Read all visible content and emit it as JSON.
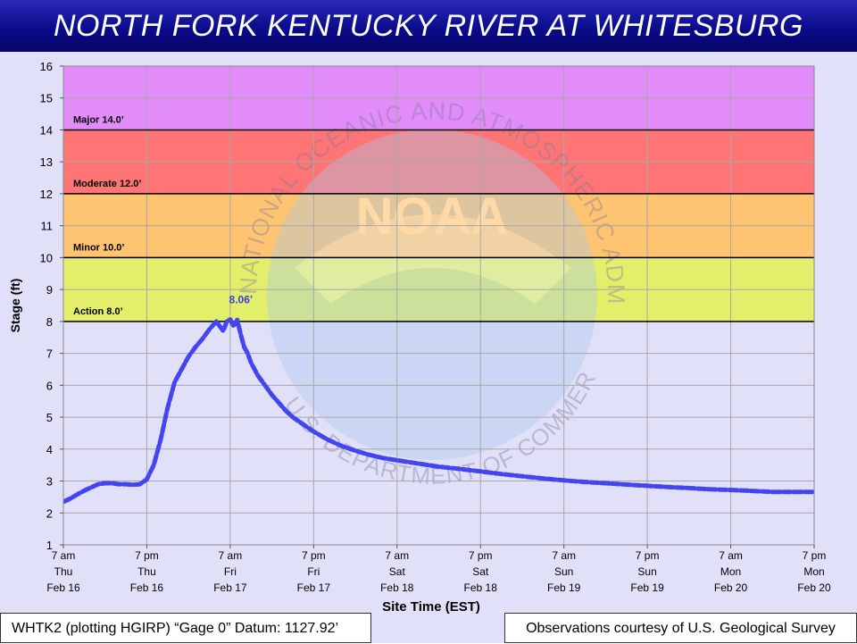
{
  "header": {
    "title": "NORTH FORK KENTUCKY RIVER AT WHITESBURG"
  },
  "footer": {
    "datum": "WHTK2 (plotting HGIRP) “Gage 0” Datum: 1127.92’",
    "credit": "Observations courtesy of U.S. Geological Survey"
  },
  "watermark": {
    "ring_text": "NATIONAL OCEANIC AND ATMOSPHERIC ADMINISTRATION",
    "bottom_text": "U.S. DEPARTMENT OF COMMERCE",
    "logo_text": "NOAA"
  },
  "chart_data": {
    "type": "line",
    "title": "NORTH FORK KENTUCKY RIVER AT WHITESBURG",
    "xlabel": "Site Time (EST)",
    "ylabel": "Stage (ft)",
    "ylim": [
      1,
      16
    ],
    "yticks": [
      1,
      2,
      3,
      4,
      5,
      6,
      7,
      8,
      9,
      10,
      11,
      12,
      13,
      14,
      15,
      16
    ],
    "xlim_hours": [
      0,
      108
    ],
    "xticks": [
      {
        "hour": 0,
        "lines": [
          "7 am",
          "Thu",
          "Feb 16"
        ]
      },
      {
        "hour": 12,
        "lines": [
          "7 pm",
          "Thu",
          "Feb 16"
        ]
      },
      {
        "hour": 24,
        "lines": [
          "7 am",
          "Fri",
          "Feb 17"
        ]
      },
      {
        "hour": 36,
        "lines": [
          "7 pm",
          "Fri",
          "Feb 17"
        ]
      },
      {
        "hour": 48,
        "lines": [
          "7 am",
          "Sat",
          "Feb 18"
        ]
      },
      {
        "hour": 60,
        "lines": [
          "7 pm",
          "Sat",
          "Feb 18"
        ]
      },
      {
        "hour": 72,
        "lines": [
          "7 am",
          "Sun",
          "Feb 19"
        ]
      },
      {
        "hour": 84,
        "lines": [
          "7 pm",
          "Sun",
          "Feb 19"
        ]
      },
      {
        "hour": 96,
        "lines": [
          "7 am",
          "Mon",
          "Feb 20"
        ]
      },
      {
        "hour": 108,
        "lines": [
          "7 pm",
          "Mon",
          "Feb 20"
        ]
      }
    ],
    "grid": true,
    "flood_categories": [
      {
        "name": "Action",
        "label": "Action 8.0’",
        "from": 8,
        "to": 10,
        "color": "#e3ef6a"
      },
      {
        "name": "Minor",
        "label": "Minor 10.0’",
        "from": 10,
        "to": 12,
        "color": "#ffc471"
      },
      {
        "name": "Moderate",
        "label": "Moderate 12.0’",
        "from": 12,
        "to": 14,
        "color": "#ff7575"
      },
      {
        "name": "Major",
        "label": "Major 14.0’",
        "from": 14,
        "to": 16,
        "color": "#e28cf9"
      }
    ],
    "series": [
      {
        "color": "#4545f0",
        "x": [
          0,
          1,
          2,
          3,
          4,
          5,
          6,
          7,
          8,
          9,
          10,
          11,
          12,
          13,
          14,
          15,
          16,
          17,
          18,
          19,
          20,
          21,
          22,
          23,
          23.5,
          24,
          24.5,
          25,
          25.5,
          26,
          26.5,
          27,
          28,
          29,
          30,
          31,
          32,
          33,
          34,
          35,
          36,
          38,
          40,
          42,
          44,
          46,
          48,
          51,
          54,
          57,
          60,
          63,
          66,
          69,
          72,
          75,
          78,
          81,
          84,
          87,
          90,
          93,
          96,
          99,
          102,
          105,
          108
        ],
        "y": [
          2.35,
          2.45,
          2.58,
          2.7,
          2.8,
          2.9,
          2.93,
          2.93,
          2.9,
          2.9,
          2.88,
          2.9,
          3.05,
          3.5,
          4.3,
          5.3,
          6.1,
          6.5,
          6.9,
          7.2,
          7.45,
          7.75,
          8.0,
          7.7,
          8.0,
          8.06,
          7.85,
          8.05,
          7.6,
          7.2,
          7.0,
          6.7,
          6.3,
          6.0,
          5.7,
          5.45,
          5.2,
          5.0,
          4.85,
          4.7,
          4.55,
          4.3,
          4.1,
          3.95,
          3.82,
          3.72,
          3.65,
          3.55,
          3.45,
          3.38,
          3.3,
          3.22,
          3.15,
          3.08,
          3.02,
          2.97,
          2.93,
          2.89,
          2.85,
          2.81,
          2.78,
          2.74,
          2.72,
          2.69,
          2.66,
          2.66,
          2.66
        ]
      }
    ],
    "annotations": [
      {
        "text": "8.06’",
        "x": 24,
        "y": 8.06
      }
    ]
  }
}
